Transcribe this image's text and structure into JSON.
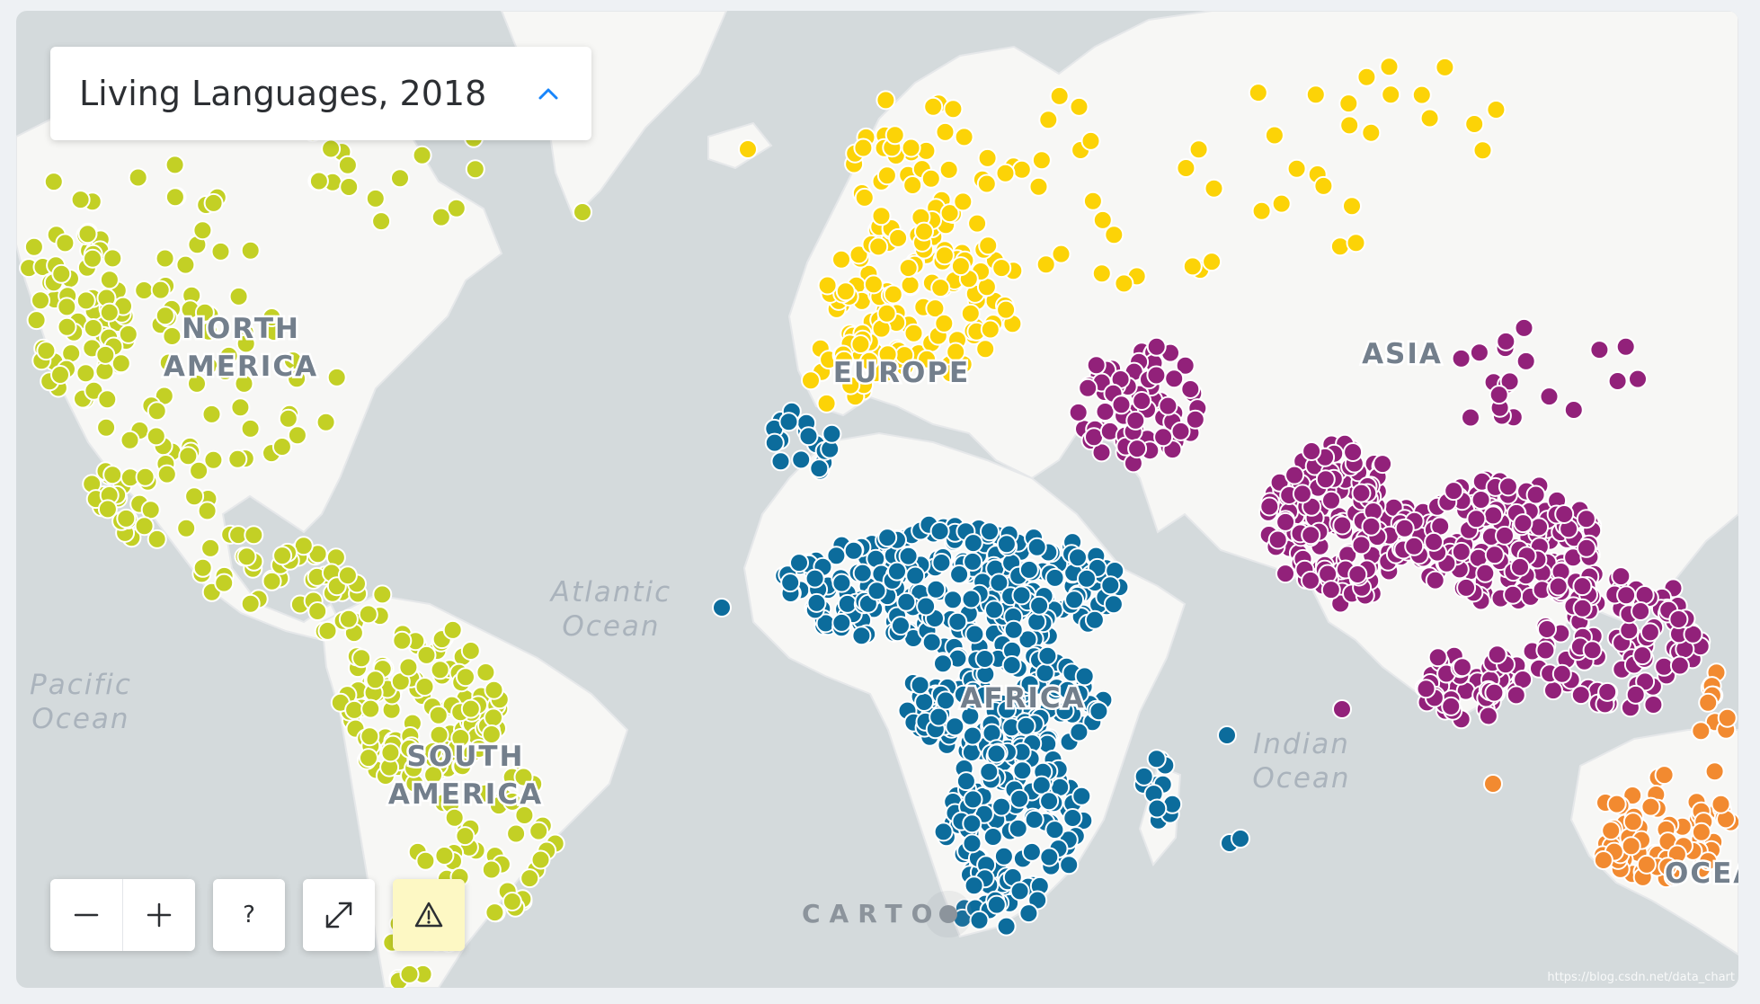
{
  "title_selector": {
    "label": "Living Languages, 2018"
  },
  "continent_labels": [
    {
      "text": "NORTH"
    },
    {
      "text": "AMERICA"
    },
    {
      "text": "SOUTH"
    },
    {
      "text": "AMERICA"
    },
    {
      "text": "EUROPE"
    },
    {
      "text": "ASIA"
    },
    {
      "text": "AFRICA"
    },
    {
      "text": "OCEA"
    }
  ],
  "ocean_labels": [
    {
      "text": "Atlantic"
    },
    {
      "text": "Ocean"
    },
    {
      "text": "Pacific"
    },
    {
      "text": "Ocean"
    },
    {
      "text": "Indian"
    },
    {
      "text": "Ocean"
    }
  ],
  "controls": {
    "zoom_out_icon": "minus-icon",
    "zoom_in_icon": "plus-icon",
    "help_label": "?",
    "fullscreen_icon": "expand-icon",
    "warning_icon": "warning-triangle-icon"
  },
  "attribution": {
    "logo": "CARTO",
    "watermark": "https://blog.csdn.net/data_chart"
  },
  "colors": {
    "ocean": "#d4dadc",
    "land": "#f7f7f5",
    "americas": "#c3d025",
    "europe": "#fcd307",
    "africa": "#0c6c9c",
    "asia": "#92217a",
    "oceania": "#f28a30"
  },
  "regions": [
    {
      "name": "americas",
      "color": "#c3d025"
    },
    {
      "name": "europe",
      "color": "#fcd307"
    },
    {
      "name": "africa",
      "color": "#0c6c9c"
    },
    {
      "name": "asia",
      "color": "#92217a"
    },
    {
      "name": "oceania",
      "color": "#f28a30"
    }
  ]
}
